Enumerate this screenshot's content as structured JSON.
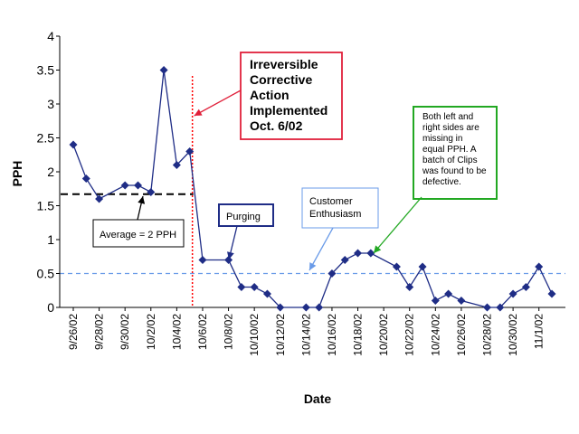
{
  "chart_data": {
    "type": "line",
    "xlabel": "Date",
    "ylabel": "PPH",
    "ylim": [
      0,
      4
    ],
    "yticks": [
      "0",
      "0.5",
      "1",
      "1.5",
      "2",
      "2.5",
      "3",
      "3.5",
      "4"
    ],
    "x_tick_labels": [
      "9/26/02",
      "9/28/02",
      "9/30/02",
      "10/2/02",
      "10/4/02",
      "10/6/02",
      "10/8/02",
      "10/10/02",
      "10/12/02",
      "10/14/02",
      "10/16/02",
      "10/18/02",
      "10/20/02",
      "10/22/02",
      "10/24/02",
      "10/26/02",
      "10/28/02",
      "10/30/02",
      "11/1/02"
    ],
    "series_color": "#1f2d86",
    "points": [
      {
        "x": "9/26/02",
        "y": 2.4
      },
      {
        "x": "9/27/02",
        "y": 1.9
      },
      {
        "x": "9/28/02",
        "y": 1.6
      },
      {
        "x": "9/30/02",
        "y": 1.8
      },
      {
        "x": "10/1/02",
        "y": 1.8
      },
      {
        "x": "10/2/02",
        "y": 1.7
      },
      {
        "x": "10/3/02",
        "y": 3.5
      },
      {
        "x": "10/4/02",
        "y": 2.1
      },
      {
        "x": "10/5/02",
        "y": 2.3
      },
      {
        "x": "10/6/02",
        "y": 0.7
      },
      {
        "x": "10/8/02",
        "y": 0.7
      },
      {
        "x": "10/9/02",
        "y": 0.3
      },
      {
        "x": "10/10/02",
        "y": 0.3
      },
      {
        "x": "10/11/02",
        "y": 0.2
      },
      {
        "x": "10/12/02",
        "y": 0.0
      },
      {
        "x": "10/14/02",
        "y": 0.0
      },
      {
        "x": "10/15/02",
        "y": 0.0
      },
      {
        "x": "10/16/02",
        "y": 0.5
      },
      {
        "x": "10/17/02",
        "y": 0.7
      },
      {
        "x": "10/18/02",
        "y": 0.8
      },
      {
        "x": "10/19/02",
        "y": 0.8
      },
      {
        "x": "10/21/02",
        "y": 0.6
      },
      {
        "x": "10/22/02",
        "y": 0.3
      },
      {
        "x": "10/23/02",
        "y": 0.6
      },
      {
        "x": "10/24/02",
        "y": 0.1
      },
      {
        "x": "10/25/02",
        "y": 0.2
      },
      {
        "x": "10/26/02",
        "y": 0.1
      },
      {
        "x": "10/28/02",
        "y": 0.0
      },
      {
        "x": "10/29/02",
        "y": 0.0
      },
      {
        "x": "10/30/02",
        "y": 0.2
      },
      {
        "x": "10/31/02",
        "y": 0.3
      },
      {
        "x": "11/1/02",
        "y": 0.6
      },
      {
        "x": "11/2/02",
        "y": 0.2
      }
    ],
    "average_line": {
      "label": "Average = 2 PPH",
      "y": 1.67,
      "x_start": "9/26/02",
      "x_end": "10/5/02",
      "color": "#000000"
    },
    "target_line": {
      "label": "Customer\nEnthusiasm",
      "y": 0.5,
      "color": "#6a9be8"
    },
    "action_line": {
      "x": "10/5/02",
      "color": "#ff0000"
    },
    "annotations": {
      "action": {
        "text": "Irreversible\nCorrective\nAction\nImplemented\nOct. 6/02",
        "border_color": "#e0203a"
      },
      "purging": {
        "text": "Purging",
        "border_color": "#1f2d86"
      },
      "defect": {
        "text": "Both left and\nright sides are\nmissing in\nequal PPH.  A\nbatch of Clips\nwas found to be\ndefective.",
        "border_color": "#22a822"
      }
    }
  }
}
